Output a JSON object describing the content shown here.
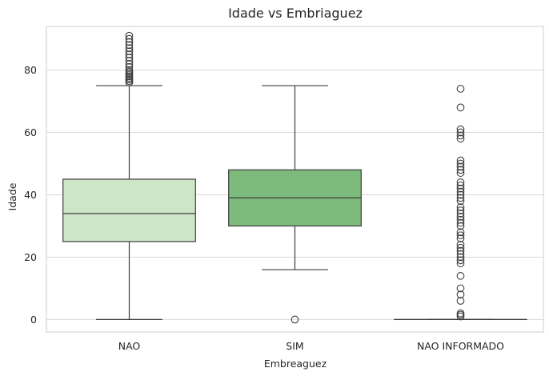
{
  "chart_data": {
    "type": "box",
    "title": "Idade vs Embriaguez",
    "xlabel": "Embreaguez",
    "ylabel": "Idade",
    "ylim": [
      -4,
      94
    ],
    "yticks": [
      0,
      20,
      40,
      60,
      80
    ],
    "grid": true,
    "categories": [
      "NAO",
      "SIM",
      "NAO INFORMADO"
    ],
    "boxes": [
      {
        "category": "NAO",
        "color": "#cde6c7",
        "whisker_low": 0,
        "q1": 25,
        "median": 34,
        "q3": 45,
        "whisker_high": 75,
        "outliers": [
          76,
          76.5,
          77,
          77.5,
          78,
          78.5,
          79,
          79.5,
          80,
          81,
          82,
          83,
          84,
          85,
          86,
          87,
          88,
          89,
          90,
          91
        ]
      },
      {
        "category": "SIM",
        "color": "#7dbb7c",
        "whisker_low": 16,
        "q1": 30,
        "median": 39,
        "q3": 48,
        "whisker_high": 75,
        "outliers": [
          0
        ]
      },
      {
        "category": "NAO INFORMADO",
        "color": "#e5f2e0",
        "whisker_low": 0,
        "q1": 0,
        "median": 0,
        "q3": 0,
        "whisker_high": 0,
        "outliers": [
          1,
          1.5,
          2,
          6,
          8,
          10,
          14,
          18,
          19,
          20,
          21,
          22,
          23,
          24,
          26,
          27,
          28,
          30,
          31,
          32,
          33,
          34,
          35,
          36,
          38,
          39,
          40,
          41,
          42,
          43,
          44,
          47,
          48,
          49,
          50,
          51,
          58,
          59,
          60,
          61,
          68,
          74
        ]
      }
    ]
  }
}
